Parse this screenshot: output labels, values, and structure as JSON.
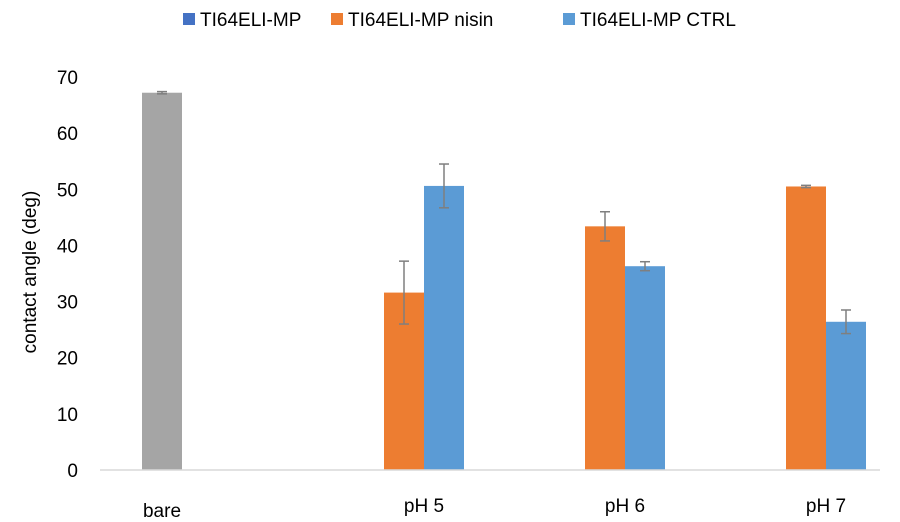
{
  "chart_data": {
    "type": "bar",
    "categories": [
      "bare",
      "pH 5",
      "pH 6",
      "pH 7"
    ],
    "series": [
      {
        "name": "TI64ELI-MP",
        "color": "#a5a5a5",
        "values": [
          67.2,
          null,
          null,
          null
        ],
        "errors": [
          0.2,
          null,
          null,
          null
        ]
      },
      {
        "name": "TI64ELI-MP nisin",
        "color": "#ed7d31",
        "values": [
          null,
          31.6,
          43.4,
          50.5
        ],
        "errors": [
          null,
          5.6,
          2.6,
          0.2
        ]
      },
      {
        "name": "TI64ELI-MP CTRL",
        "color": "#5b9bd5",
        "values": [
          null,
          50.6,
          36.3,
          26.4
        ],
        "errors": [
          null,
          3.9,
          0.8,
          2.1
        ]
      }
    ],
    "legend_markers": [
      "#4472c4",
      "#ed7d31",
      "#5b9bd5"
    ],
    "ylabel": "contact angle (deg)",
    "xlabel": "",
    "ylim": [
      0,
      70
    ],
    "yticks": [
      0,
      10,
      20,
      30,
      40,
      50,
      60,
      70
    ],
    "grid": false,
    "legend_position": "top"
  }
}
